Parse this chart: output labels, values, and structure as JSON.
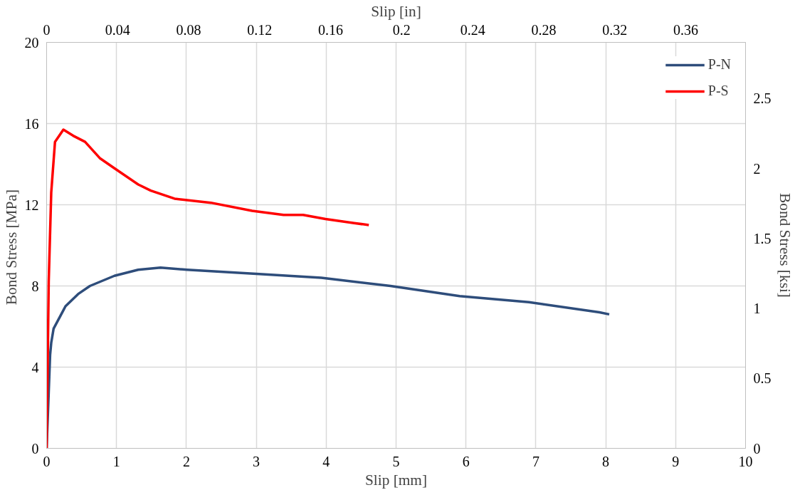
{
  "chart_data": {
    "type": "line",
    "xlabel": "Slip [mm]",
    "ylabel": "Bond Stress  [MPa]",
    "y2label": "Bond Stress [ksi]",
    "x2label": "Slip [in]",
    "xlim": [
      0,
      10
    ],
    "xticks": [
      0,
      1,
      2,
      3,
      4,
      5,
      6,
      7,
      8,
      9,
      10
    ],
    "ylim": [
      0,
      20
    ],
    "yticks": [
      0,
      4,
      8,
      12,
      16,
      20
    ],
    "x2lim": [
      0,
      0.3937
    ],
    "x2ticks": [
      0,
      0.04,
      0.08,
      0.12,
      0.16,
      0.2,
      0.24,
      0.28,
      0.32,
      0.36
    ],
    "y2lim": [
      0,
      2.9008
    ],
    "y2ticks": [
      0,
      0.5,
      1,
      1.5,
      2,
      2.5
    ],
    "grid": true,
    "legend": "top right",
    "marker": "none",
    "line_style": "solid",
    "series": [
      {
        "name": "P-N",
        "color": "#2e4d7b",
        "x": [
          0,
          0.05,
          0.066,
          0.1,
          0.24,
          0.27,
          0.45,
          0.62,
          0.97,
          1.31,
          1.63,
          2.01,
          3.0,
          3.93,
          4.92,
          5.91,
          6.9,
          7.91,
          8.05
        ],
        "values": [
          0,
          4.6,
          5.2,
          5.9,
          6.8,
          7.0,
          7.6,
          8.0,
          8.5,
          8.8,
          8.9,
          8.8,
          8.6,
          8.4,
          8.0,
          7.5,
          7.2,
          6.7,
          6.6
        ]
      },
      {
        "name": "P-S",
        "color": "#ff0000",
        "x": [
          0,
          0.03,
          0.066,
          0.12,
          0.24,
          0.38,
          0.55,
          0.76,
          0.97,
          1.31,
          1.49,
          1.83,
          2.35,
          2.94,
          3.39,
          3.67,
          3.99,
          4.4,
          4.61
        ],
        "values": [
          0,
          8.2,
          12.6,
          15.1,
          15.7,
          15.4,
          15.1,
          14.3,
          13.8,
          13.0,
          12.7,
          12.3,
          12.1,
          11.7,
          11.5,
          11.5,
          11.3,
          11.1,
          11.0
        ]
      }
    ]
  }
}
